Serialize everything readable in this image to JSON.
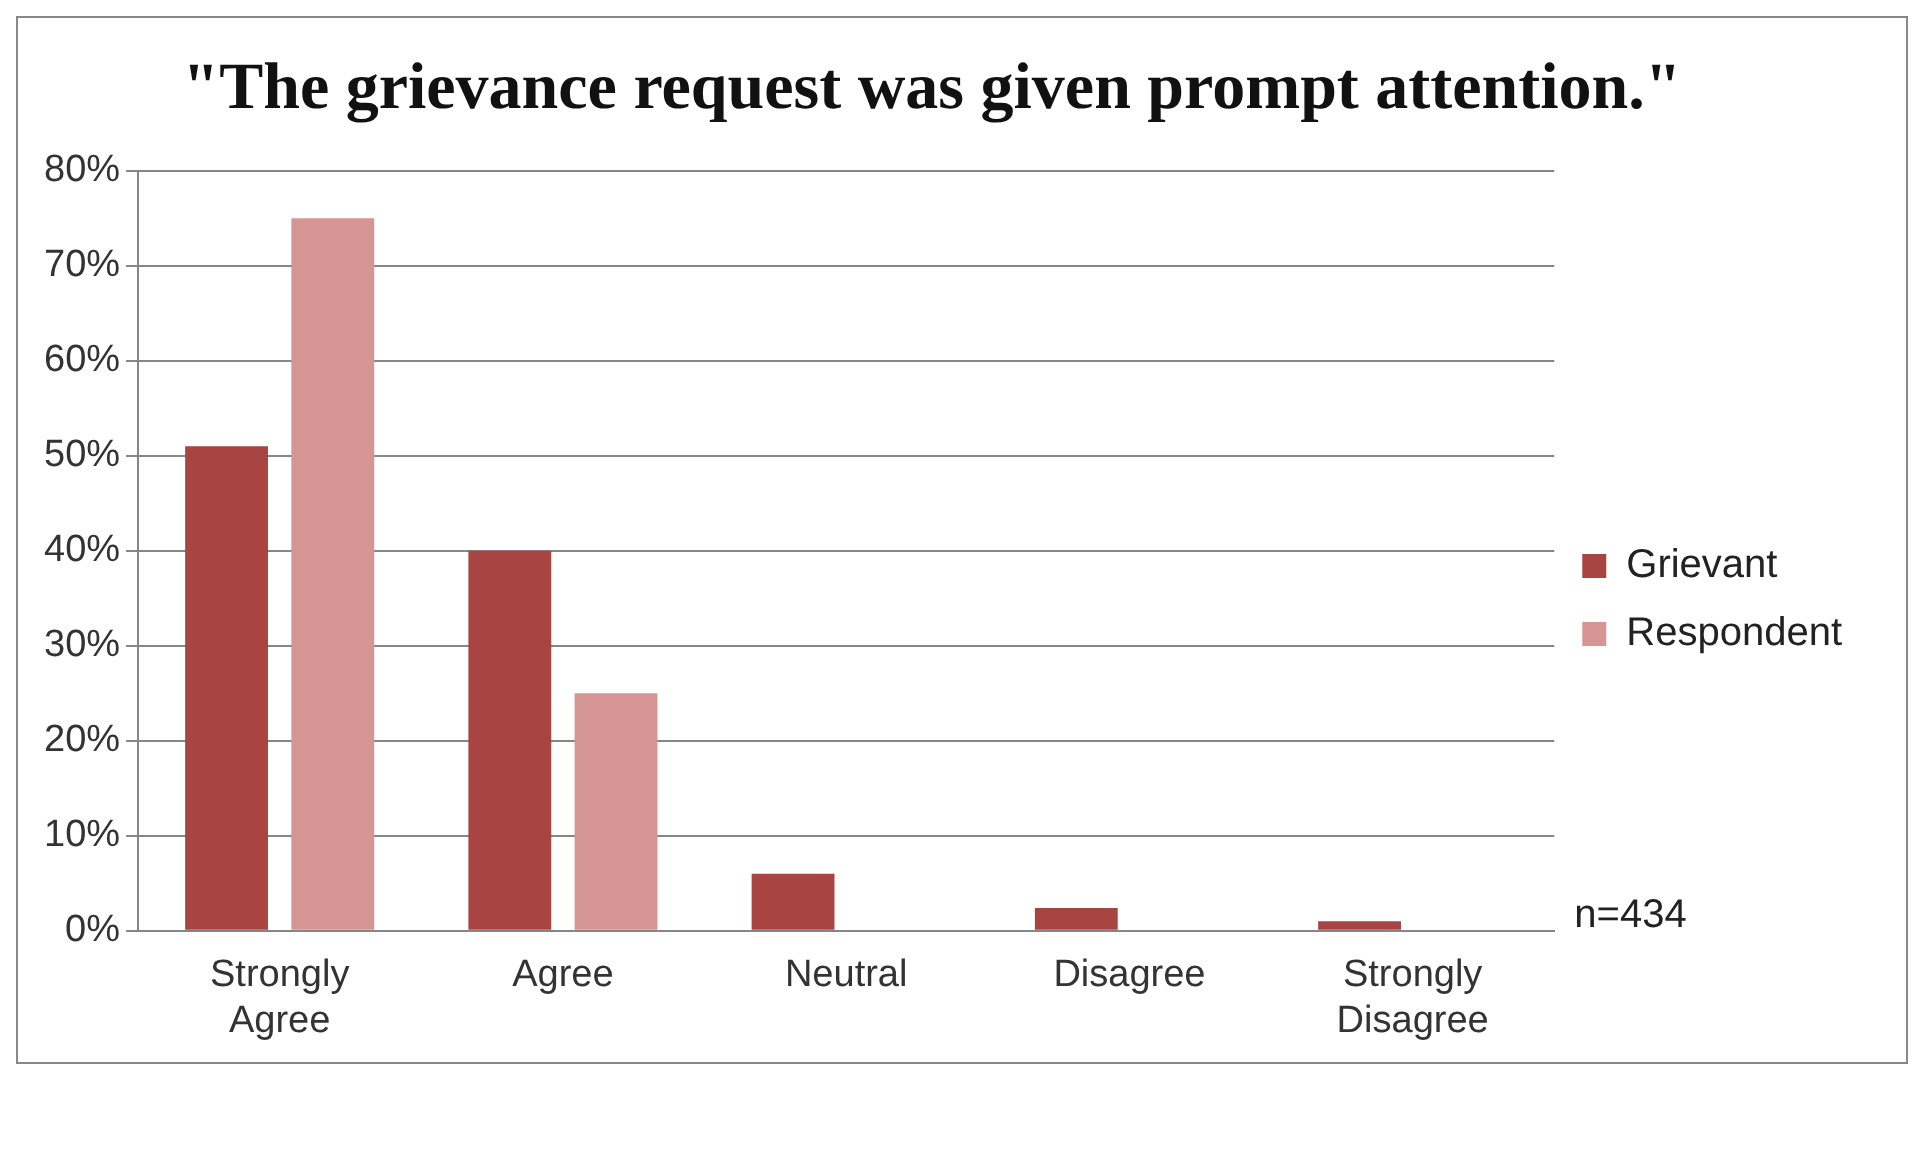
{
  "chart_data": {
    "type": "bar",
    "title": "\"The grievance request was given prompt attention.\"",
    "categories": [
      "Strongly Agree",
      "Agree",
      "Neutral",
      "Disagree",
      "Strongly Disagree"
    ],
    "series": [
      {
        "name": "Grievant",
        "color": "#a84543",
        "values": [
          51,
          40,
          6,
          2.4,
          1
        ]
      },
      {
        "name": "Respondent",
        "color": "#d49593",
        "values": [
          75,
          25,
          0,
          0,
          0
        ]
      }
    ],
    "ylim": [
      0,
      80
    ],
    "yticks": [
      {
        "value": 0,
        "label": "0%"
      },
      {
        "value": 10,
        "label": "10%"
      },
      {
        "value": 20,
        "label": "20%"
      },
      {
        "value": 30,
        "label": "30%"
      },
      {
        "value": 40,
        "label": "40%"
      },
      {
        "value": 50,
        "label": "50%"
      },
      {
        "value": 60,
        "label": "60%"
      },
      {
        "value": 70,
        "label": "70%"
      },
      {
        "value": 80,
        "label": "80%"
      }
    ],
    "grid": "y",
    "legend": "right",
    "annotations": [
      "n=434"
    ]
  }
}
